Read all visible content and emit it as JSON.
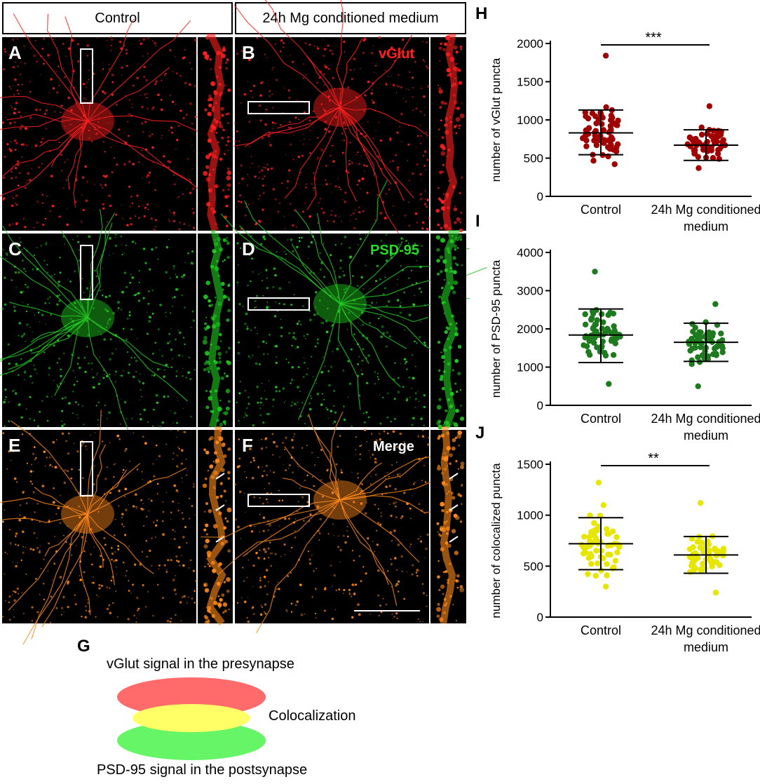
{
  "columns": {
    "left": "Control",
    "right": "24h Mg conditioned medium"
  },
  "panels": {
    "A": "A",
    "B": "B",
    "C": "C",
    "D": "D",
    "E": "E",
    "F": "F",
    "G": "G",
    "H": "H",
    "I": "I",
    "J": "J"
  },
  "channels": {
    "vglut": "vGlut",
    "psd95": "PSD-95",
    "merge": "Merge"
  },
  "colors": {
    "vglut": "#ff2020",
    "psd95": "#22cc22",
    "merge": "#ff8a1a",
    "dot_H": "#a00000",
    "dot_I": "#1e7a1e",
    "dot_J": "#e6e600"
  },
  "diagram": {
    "top": "vGlut signal in the presynapse",
    "middle": "Colocalization",
    "bottom": "PSD-95 signal in the postsynapse"
  },
  "chart_data": [
    {
      "id": "H",
      "type": "scatter",
      "ylabel": "number of vGlut puncta",
      "ylim": [
        0,
        2000
      ],
      "yticks": [
        "0",
        "500",
        "1000",
        "1500",
        "2000"
      ],
      "categories": [
        "Control",
        "24h Mg conditioned medium"
      ],
      "significance": "***",
      "series": [
        {
          "category": "Control",
          "mean": 830,
          "sd_low": 545,
          "sd_high": 1130,
          "min": 420,
          "max": 1840
        },
        {
          "category": "24h Mg conditioned medium",
          "mean": 670,
          "sd_low": 470,
          "sd_high": 870,
          "min": 370,
          "max": 1180
        }
      ]
    },
    {
      "id": "I",
      "type": "scatter",
      "ylabel": "number of PSD-95 puncta",
      "ylim": [
        0,
        4000
      ],
      "yticks": [
        "0",
        "1000",
        "2000",
        "3000",
        "4000"
      ],
      "categories": [
        "Control",
        "24h Mg conditioned medium"
      ],
      "significance": "",
      "series": [
        {
          "category": "Control",
          "mean": 1840,
          "sd_low": 1120,
          "sd_high": 2520,
          "min": 560,
          "max": 3500
        },
        {
          "category": "24h Mg conditioned medium",
          "mean": 1650,
          "sd_low": 1150,
          "sd_high": 2150,
          "min": 500,
          "max": 2650
        }
      ]
    },
    {
      "id": "J",
      "type": "scatter",
      "ylabel": "number of colocalized puncta",
      "ylim": [
        0,
        1500
      ],
      "yticks": [
        "0",
        "500",
        "1000",
        "1500"
      ],
      "categories": [
        "Control",
        "24h Mg conditioned medium"
      ],
      "significance": "**",
      "series": [
        {
          "category": "Control",
          "mean": 720,
          "sd_low": 465,
          "sd_high": 975,
          "min": 300,
          "max": 1320
        },
        {
          "category": "24h Mg conditioned medium",
          "mean": 610,
          "sd_low": 430,
          "sd_high": 790,
          "min": 240,
          "max": 1120
        }
      ]
    }
  ]
}
